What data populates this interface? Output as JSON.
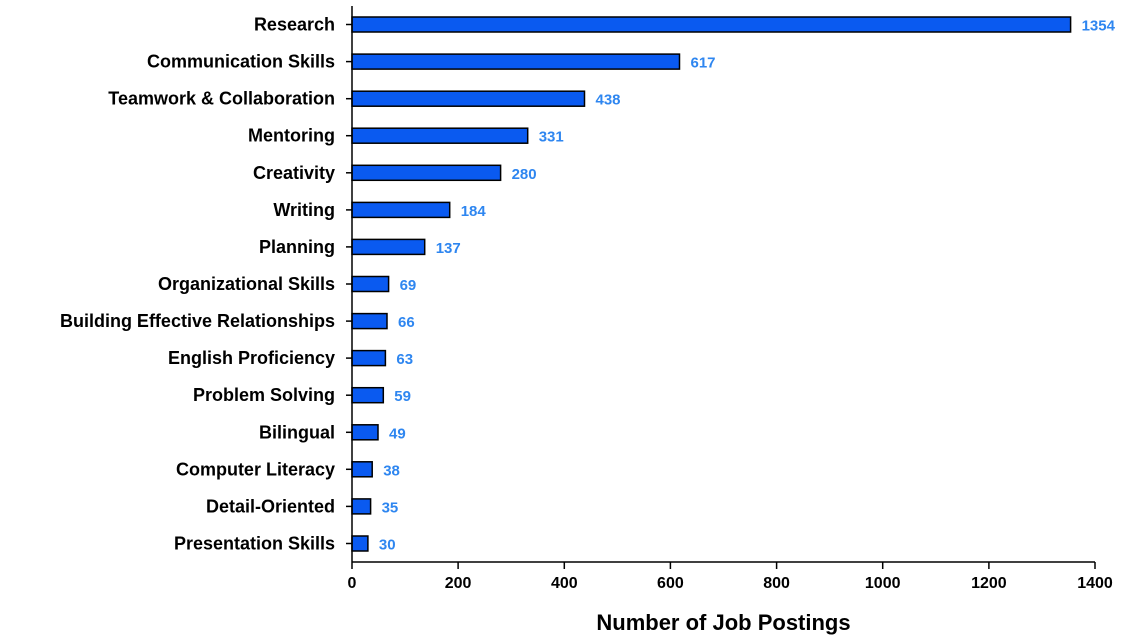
{
  "chart_data": {
    "type": "bar",
    "orientation": "horizontal",
    "categories": [
      "Research",
      "Communication Skills",
      "Teamwork & Collaboration",
      "Mentoring",
      "Creativity",
      "Writing",
      "Planning",
      "Organizational Skills",
      "Building Effective Relationships",
      "English Proficiency",
      "Problem Solving",
      "Bilingual",
      "Computer Literacy",
      "Detail-Oriented",
      "Presentation Skills"
    ],
    "values": [
      1354,
      617,
      438,
      331,
      280,
      184,
      137,
      69,
      66,
      63,
      59,
      49,
      38,
      35,
      30
    ],
    "data_labels": [
      "1354",
      "617",
      "438",
      "331",
      "280",
      "184",
      "137",
      "69",
      "66",
      "63",
      "59",
      "49",
      "38",
      "35",
      "30"
    ],
    "xlabel": "Number of Job Postings",
    "ylabel": "",
    "xlim": [
      0,
      1400
    ],
    "xticks": [
      0,
      200,
      400,
      600,
      800,
      1000,
      1200,
      1400
    ],
    "xtick_labels": [
      "0",
      "200",
      "400",
      "600",
      "800",
      "1000",
      "1200",
      "1400"
    ],
    "grid": false,
    "legend": "none",
    "colors": {
      "bar_fill": "#0A5AF0",
      "bar_stroke": "#000000",
      "value_label": "#2E86F0",
      "axis": "#000000"
    }
  }
}
